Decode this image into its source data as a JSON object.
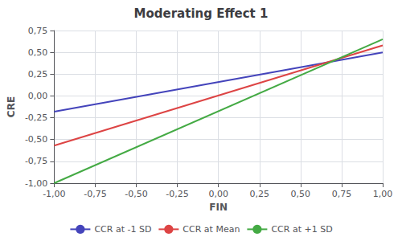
{
  "chart_data": {
    "type": "line",
    "title": "Moderating Effect 1",
    "xlabel": "FIN",
    "ylabel": "CRE",
    "x": [
      -1.0,
      1.0
    ],
    "series": [
      {
        "name": "CCR at -1 SD",
        "color": "#4444bb",
        "values": [
          -0.18,
          0.5
        ]
      },
      {
        "name": "CCR at Mean",
        "color": "#dd4444",
        "values": [
          -0.57,
          0.58
        ]
      },
      {
        "name": "CCR at +1 SD",
        "color": "#44aa44",
        "values": [
          -1.0,
          0.65
        ]
      }
    ],
    "xlim": [
      -1.0,
      1.0
    ],
    "ylim": [
      -1.0,
      0.75
    ],
    "xticks": [
      {
        "value": -1.0,
        "label": "-1,00"
      },
      {
        "value": -0.75,
        "label": "-0,75"
      },
      {
        "value": -0.5,
        "label": "-0,50"
      },
      {
        "value": -0.25,
        "label": "-0,25"
      },
      {
        "value": 0.0,
        "label": "0,00"
      },
      {
        "value": 0.25,
        "label": "0,25"
      },
      {
        "value": 0.5,
        "label": "0,50"
      },
      {
        "value": 0.75,
        "label": "0,75"
      },
      {
        "value": 1.0,
        "label": "1,00"
      }
    ],
    "yticks": [
      {
        "value": -1.0,
        "label": "-1,00"
      },
      {
        "value": -0.75,
        "label": "-0,75"
      },
      {
        "value": -0.5,
        "label": "-0,50"
      },
      {
        "value": -0.25,
        "label": "-0,25"
      },
      {
        "value": 0.0,
        "label": "0,00"
      },
      {
        "value": 0.25,
        "label": "0,25"
      },
      {
        "value": 0.5,
        "label": "0,50"
      },
      {
        "value": 0.75,
        "label": "0,75"
      }
    ],
    "grid": true,
    "legend": "bottom"
  }
}
